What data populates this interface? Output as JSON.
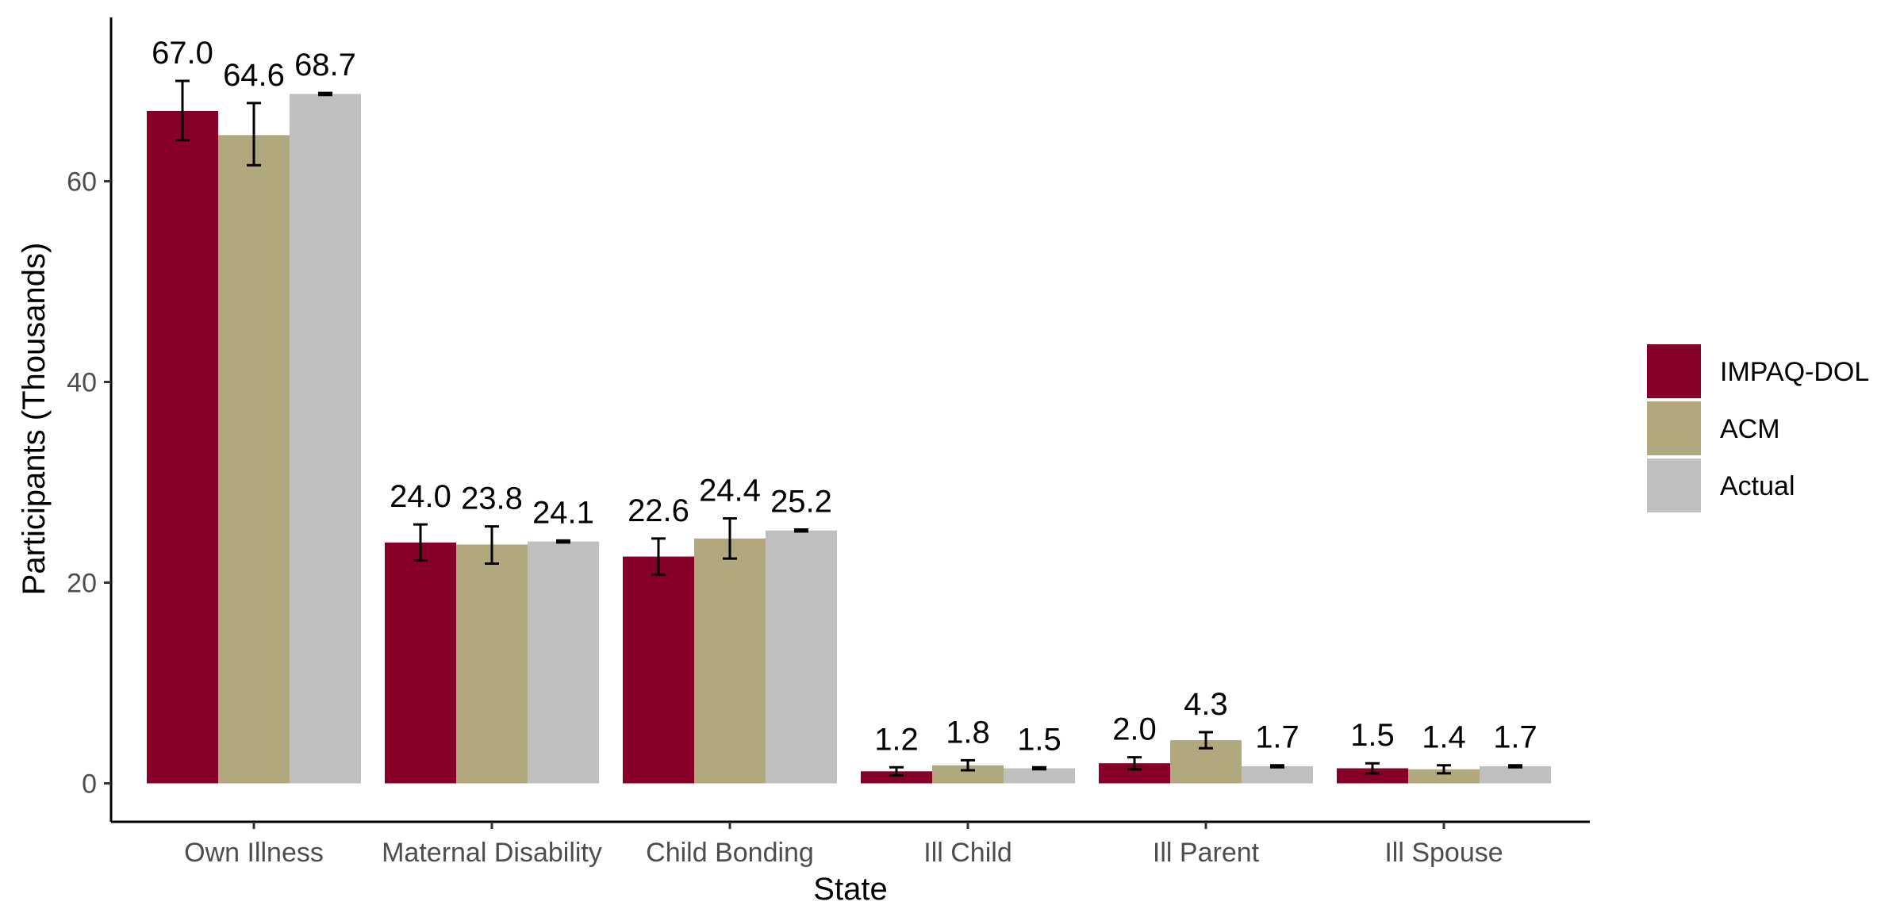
{
  "chart_data": {
    "type": "bar",
    "xlabel": "State",
    "ylabel": "Participants (Thousands)",
    "ylim": [
      0,
      77
    ],
    "yticks": [
      0,
      20,
      40,
      60
    ],
    "categories": [
      "Own Illness",
      "Maternal Disability",
      "Child Bonding",
      "Ill Child",
      "Ill Parent",
      "Ill Spouse"
    ],
    "legend_position": "right",
    "grid": false,
    "series": [
      {
        "name": "IMPAQ-DOL",
        "color": "#860028",
        "values": [
          67.0,
          24.0,
          22.6,
          1.2,
          2.0,
          1.5
        ],
        "labels": [
          "67.0",
          "24.0",
          "22.6",
          "1.2",
          "2.0",
          "1.5"
        ],
        "err_low": [
          64.1,
          22.2,
          20.8,
          0.8,
          1.4,
          1.0
        ],
        "err_high": [
          70.0,
          25.8,
          24.4,
          1.6,
          2.6,
          2.0
        ]
      },
      {
        "name": "ACM",
        "color": "#b2a87e",
        "values": [
          64.6,
          23.8,
          24.4,
          1.8,
          4.3,
          1.4
        ],
        "labels": [
          "64.6",
          "23.8",
          "24.4",
          "1.8",
          "4.3",
          "1.4"
        ],
        "err_low": [
          61.6,
          21.9,
          22.4,
          1.3,
          3.5,
          1.0
        ],
        "err_high": [
          67.8,
          25.6,
          26.4,
          2.3,
          5.1,
          1.8
        ]
      },
      {
        "name": "Actual",
        "color": "#bfbfbf",
        "values": [
          68.7,
          24.1,
          25.2,
          1.5,
          1.7,
          1.7
        ],
        "labels": [
          "68.7",
          "24.1",
          "25.2",
          "1.5",
          "1.7",
          "1.7"
        ],
        "err_low": [
          68.6,
          24.0,
          25.1,
          1.4,
          1.6,
          1.6
        ],
        "err_high": [
          68.8,
          24.2,
          25.3,
          1.6,
          1.8,
          1.8
        ]
      }
    ]
  }
}
